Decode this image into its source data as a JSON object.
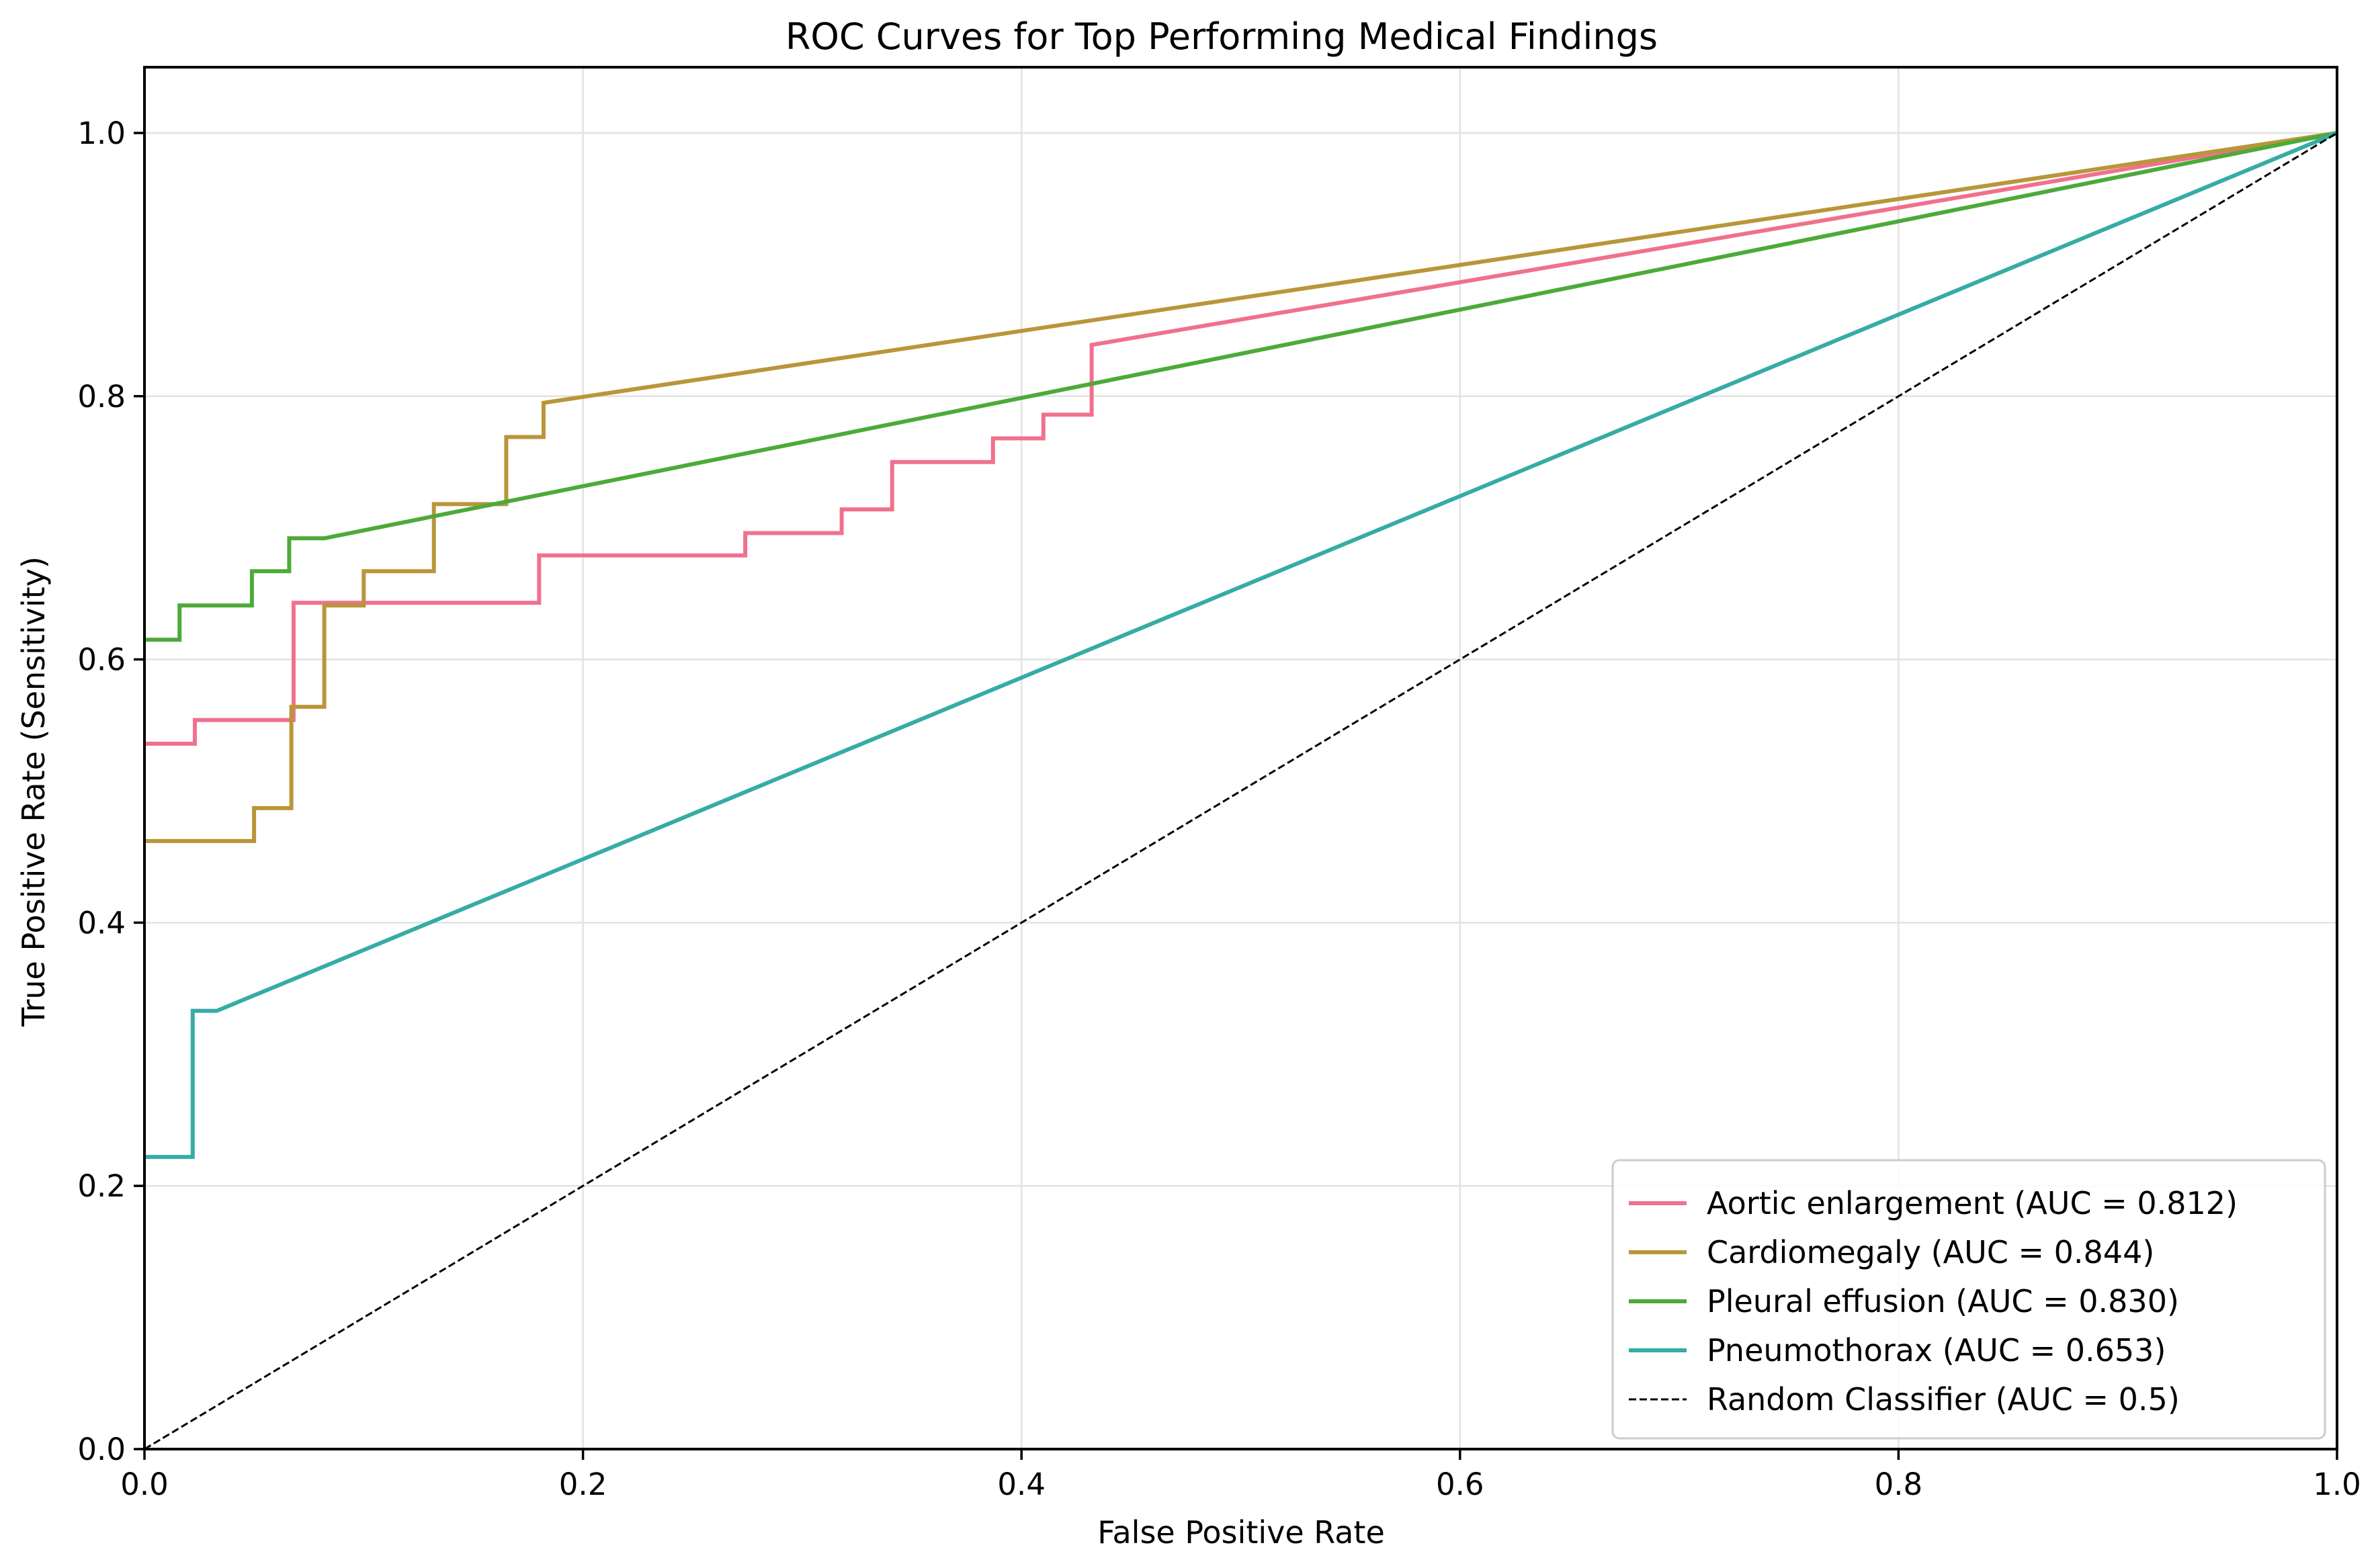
{
  "chart_data": {
    "type": "line",
    "title": "ROC Curves for Top Performing Medical Findings",
    "xlabel": "False Positive Rate",
    "ylabel": "True Positive Rate (Sensitivity)",
    "xlim": [
      0,
      1
    ],
    "ylim": [
      0,
      1.05
    ],
    "xticks": [
      0.0,
      0.2,
      0.4,
      0.6,
      0.8,
      1.0
    ],
    "xtick_labels": [
      "0.0",
      "0.2",
      "0.4",
      "0.6",
      "0.8",
      "1.0"
    ],
    "yticks": [
      0.0,
      0.2,
      0.4,
      0.6,
      0.8,
      1.0
    ],
    "ytick_labels": [
      "0.0",
      "0.2",
      "0.4",
      "0.6",
      "0.8",
      "1.0"
    ],
    "grid": true,
    "legend_position": "lower-right",
    "series": [
      {
        "name": "Aortic enlargement (AUC = 0.812)",
        "color": "#f0718d",
        "style": "solid",
        "x": [
          0,
          0.023,
          0.023,
          0.068,
          0.068,
          0.18,
          0.18,
          0.274,
          0.274,
          0.318,
          0.318,
          0.341,
          0.341,
          0.387,
          0.387,
          0.41,
          0.41,
          0.432,
          0.432,
          1.0
        ],
        "y": [
          0.536,
          0.536,
          0.554,
          0.554,
          0.643,
          0.643,
          0.679,
          0.679,
          0.696,
          0.696,
          0.714,
          0.714,
          0.75,
          0.75,
          0.768,
          0.768,
          0.786,
          0.786,
          0.839,
          1.0
        ]
      },
      {
        "name": "Cardiomegaly (AUC = 0.844)",
        "color": "#b8963a",
        "style": "solid",
        "x": [
          0,
          0.05,
          0.05,
          0.067,
          0.067,
          0.082,
          0.082,
          0.1,
          0.1,
          0.132,
          0.132,
          0.165,
          0.165,
          0.182,
          0.182,
          1.0
        ],
        "y": [
          0.462,
          0.462,
          0.487,
          0.487,
          0.564,
          0.564,
          0.641,
          0.641,
          0.667,
          0.667,
          0.718,
          0.718,
          0.769,
          0.769,
          0.795,
          1.0
        ]
      },
      {
        "name": "Pleural effusion (AUC = 0.830)",
        "color": "#4daa39",
        "style": "solid",
        "x": [
          0,
          0.016,
          0.016,
          0.049,
          0.049,
          0.066,
          0.066,
          0.082,
          1.0
        ],
        "y": [
          0.615,
          0.615,
          0.641,
          0.641,
          0.667,
          0.667,
          0.692,
          0.692,
          1.0
        ]
      },
      {
        "name": "Pneumothorax (AUC = 0.653)",
        "color": "#36aca5",
        "style": "solid",
        "x": [
          0,
          0.022,
          0.022,
          0.033,
          1.0
        ],
        "y": [
          0.222,
          0.222,
          0.333,
          0.333,
          1.0
        ]
      },
      {
        "name": "Random Classifier (AUC = 0.5)",
        "color": "#000000",
        "style": "dashed",
        "x": [
          0,
          1
        ],
        "y": [
          0,
          1
        ]
      }
    ]
  }
}
